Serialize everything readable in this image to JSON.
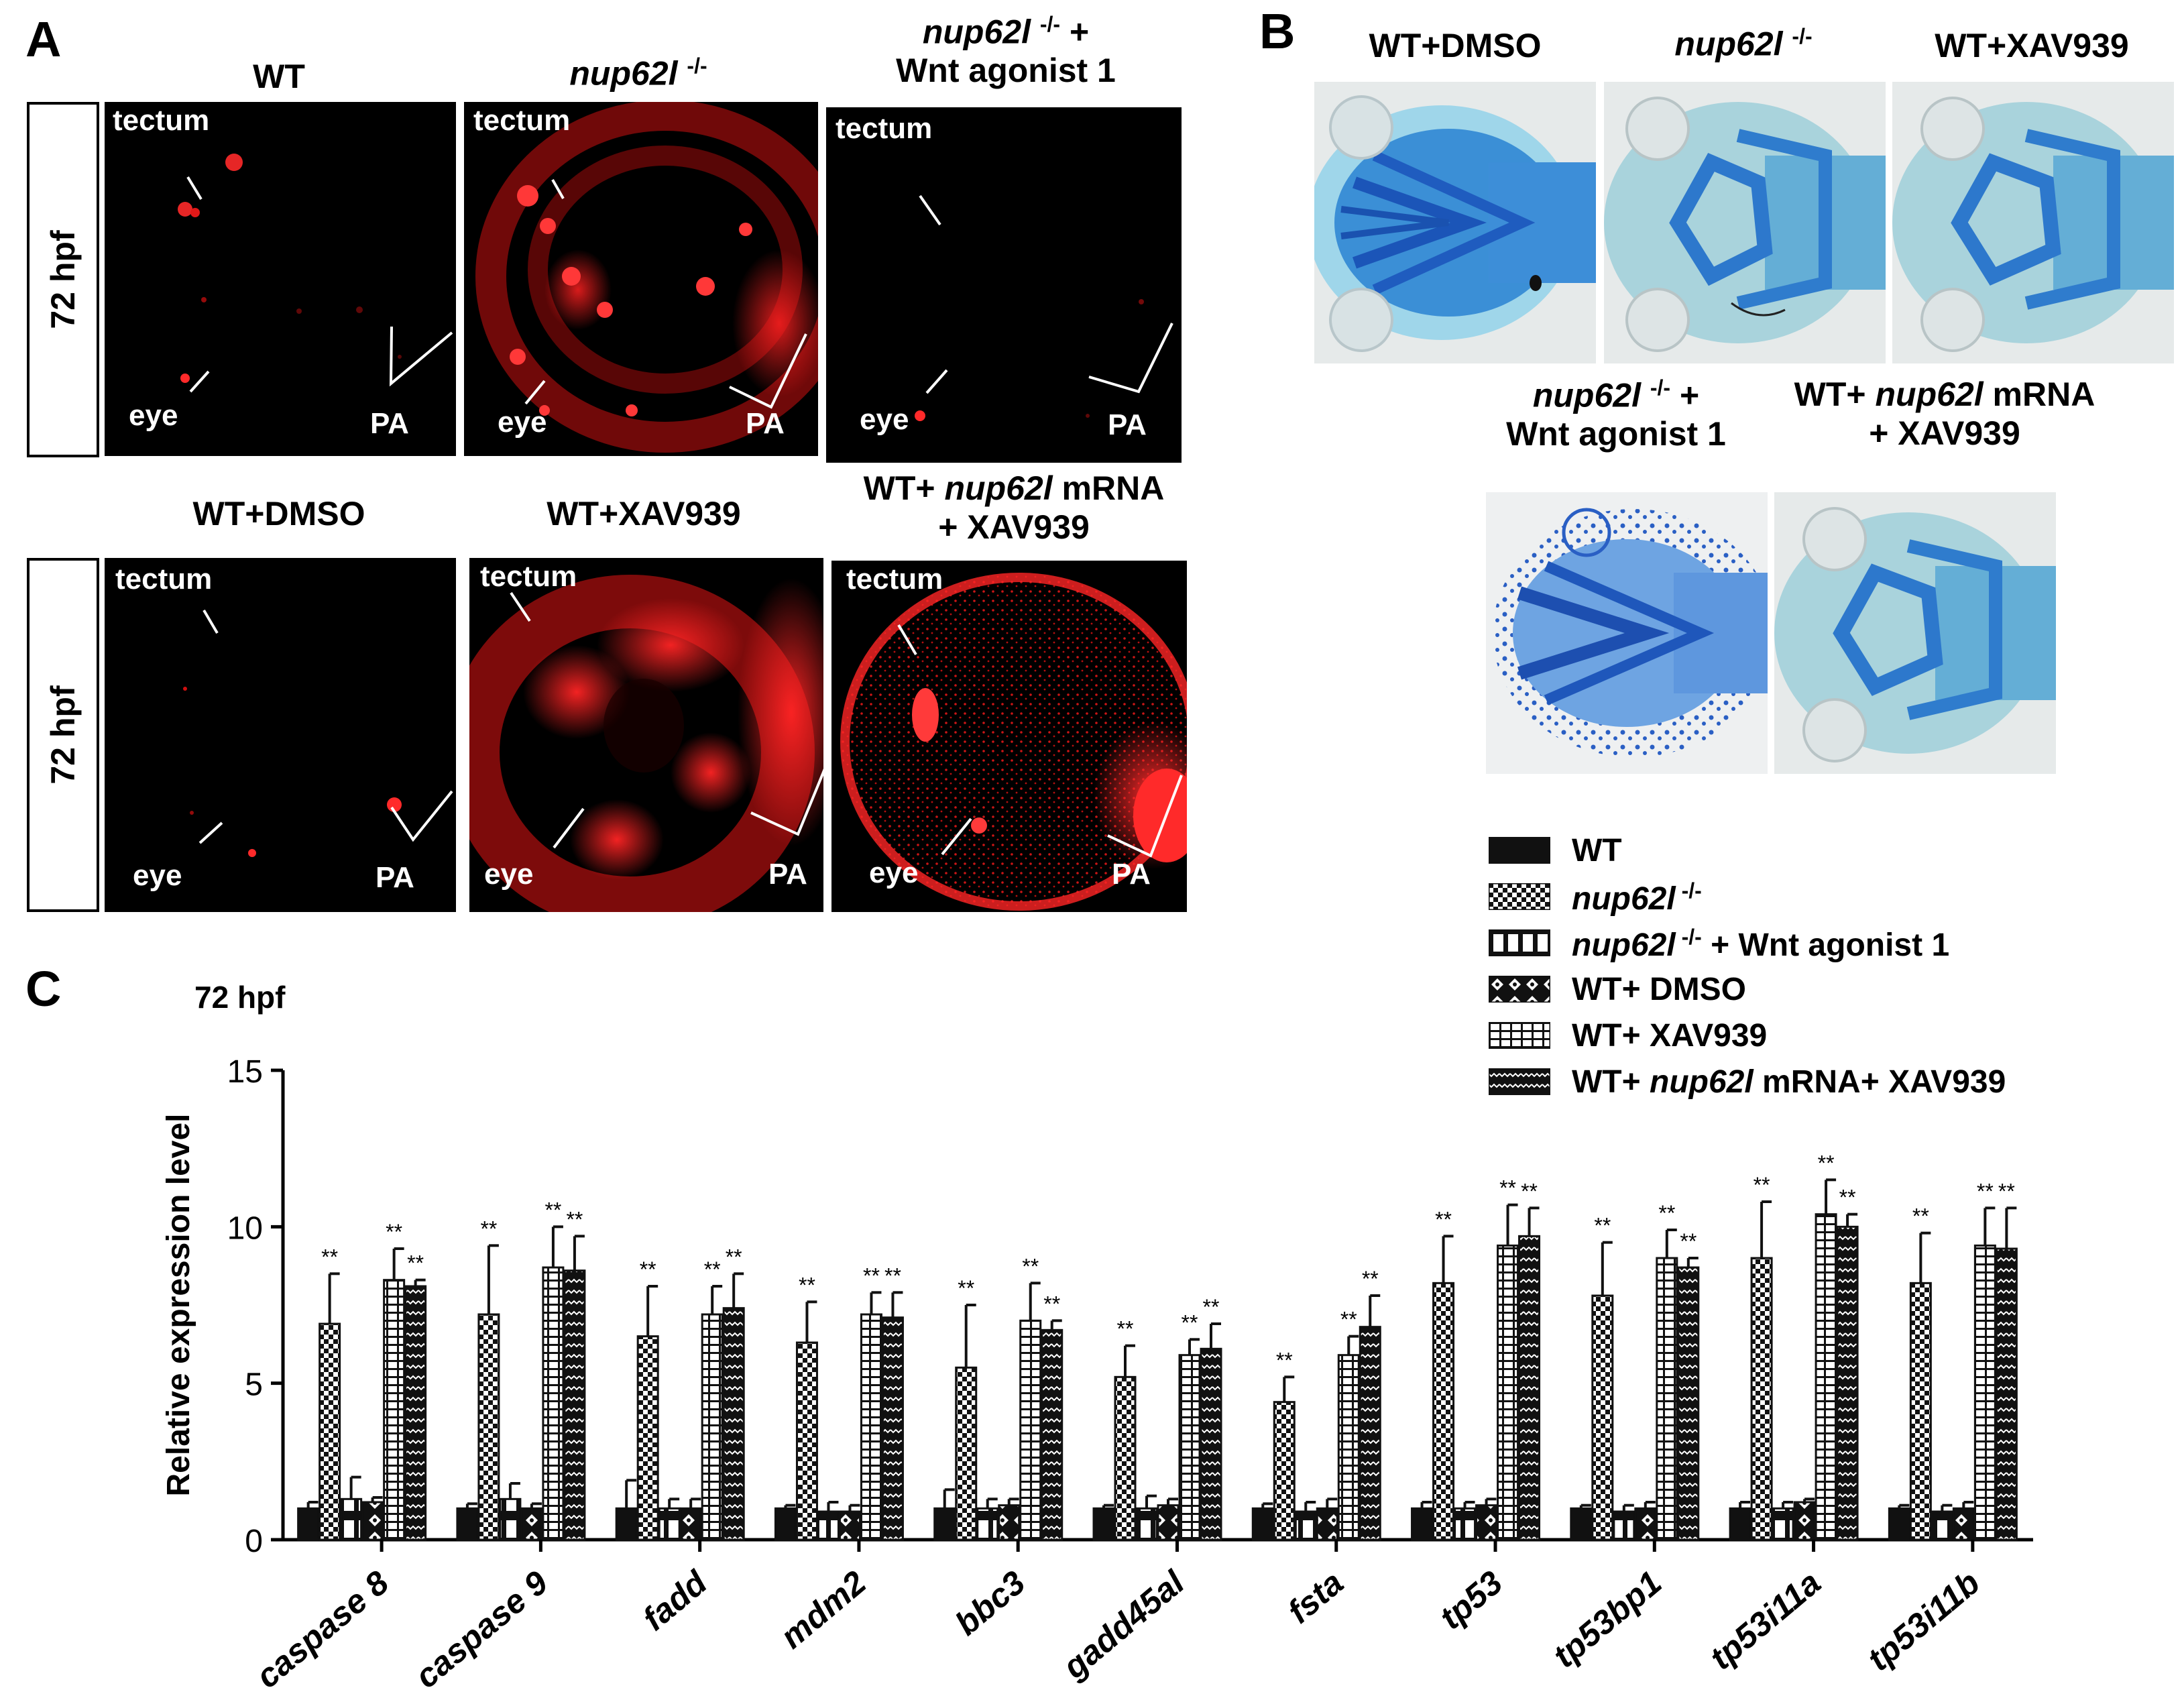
{
  "panels": {
    "A": {
      "label": "A",
      "row_label": "72 hpf",
      "images": [
        {
          "title": "WT",
          "title_italic": "",
          "tectum": "tectum",
          "eye": "eye",
          "pa": "PA"
        },
        {
          "title": "",
          "title_italic": "nup62l",
          "title_sup": "-/-",
          "tectum": "tectum",
          "eye": "eye",
          "pa": "PA"
        },
        {
          "title_italic": "nup62l",
          "title_sup": "-/-",
          "title_rest": " +",
          "title_line2": "Wnt agonist 1",
          "tectum": "tectum",
          "eye": "eye",
          "pa": "PA"
        },
        {
          "title": "WT+DMSO",
          "tectum": "tectum",
          "eye": "eye",
          "pa": "PA"
        },
        {
          "title": "WT+XAV939",
          "tectum": "tectum",
          "eye": "eye",
          "pa": "PA"
        },
        {
          "title_pre": "WT+ ",
          "title_italic": "nup62l",
          "title_rest": " mRNA",
          "title_line2": "+ XAV939",
          "tectum": "tectum",
          "eye": "eye",
          "pa": "PA"
        }
      ]
    },
    "B": {
      "label": "B",
      "titles": {
        "wt_dmso": "WT+DMSO",
        "mut_italic": "nup62l",
        "mut_sup": "-/-",
        "wt_xav": "WT+XAV939",
        "mut_wnt_italic": "nup62l",
        "mut_wnt_sup": "-/-",
        "mut_wnt_rest": " +",
        "mut_wnt_line2": "Wnt agonist 1",
        "rescue_pre": "WT+ ",
        "rescue_italic": "nup62l",
        "rescue_rest": " mRNA",
        "rescue_line2": "+ XAV939"
      }
    },
    "C": {
      "label": "C"
    }
  },
  "legend": [
    {
      "pre": "WT",
      "italic": "",
      "sup": "",
      "rest": "",
      "pattern": "solid"
    },
    {
      "pre": "",
      "italic": "nup62l",
      "sup": "-/-",
      "rest": "",
      "pattern": "checker"
    },
    {
      "pre": "",
      "italic": "nup62l",
      "sup": "-/-",
      "rest": "+ Wnt agonist 1",
      "pattern": "vbars"
    },
    {
      "pre": "WT+ DMSO",
      "italic": "",
      "sup": "",
      "rest": "",
      "pattern": "xdiamond"
    },
    {
      "pre": "WT+ XAV939",
      "italic": "",
      "sup": "",
      "rest": "",
      "pattern": "hgrid"
    },
    {
      "pre": "WT+ ",
      "italic": "nup62l",
      "sup": "",
      "rest": " mRNA+ XAV939",
      "pattern": "zigzag"
    }
  ],
  "chart_data": {
    "type": "bar",
    "title": "72 hpf",
    "ylabel": "Relative expression level",
    "xlabel": "",
    "ylim": [
      0,
      15
    ],
    "yticks": [
      "0",
      "5",
      "10",
      "15"
    ],
    "significance_mark": "**",
    "categories": [
      "caspase 8",
      "caspase 9",
      "fadd",
      "mdm2",
      "bbc3",
      "gadd45al",
      "fsta",
      "tp53",
      "tp53bp1",
      "tp53i11a",
      "tp53i11b"
    ],
    "series": [
      {
        "name": "WT",
        "values": [
          1.0,
          1.0,
          1.0,
          1.0,
          1.0,
          1.0,
          1.0,
          1.0,
          1.0,
          1.0,
          1.0
        ],
        "errors": [
          0.2,
          0.15,
          0.9,
          0.1,
          0.6,
          0.1,
          0.15,
          0.2,
          0.1,
          0.2,
          0.1
        ],
        "sig": [
          false,
          false,
          false,
          false,
          false,
          false,
          false,
          false,
          false,
          false,
          false
        ]
      },
      {
        "name": "nup62l -/-",
        "values": [
          6.9,
          7.2,
          6.5,
          6.3,
          5.5,
          5.2,
          4.4,
          8.2,
          7.8,
          9.0,
          8.2
        ],
        "errors": [
          1.6,
          2.2,
          1.6,
          1.3,
          2.0,
          1.0,
          0.8,
          1.5,
          1.7,
          1.8,
          1.6
        ],
        "sig": [
          true,
          true,
          true,
          true,
          true,
          true,
          true,
          true,
          true,
          true,
          true
        ]
      },
      {
        "name": "nup62l -/- + Wnt agonist 1",
        "values": [
          1.3,
          1.3,
          1.0,
          0.9,
          1.0,
          1.0,
          0.9,
          1.0,
          0.9,
          1.0,
          0.9
        ],
        "errors": [
          0.7,
          0.5,
          0.3,
          0.3,
          0.3,
          0.4,
          0.3,
          0.2,
          0.2,
          0.2,
          0.2
        ],
        "sig": [
          false,
          false,
          false,
          false,
          false,
          false,
          false,
          false,
          false,
          false,
          false
        ]
      },
      {
        "name": "WT+ DMSO",
        "values": [
          1.2,
          1.0,
          1.0,
          0.9,
          1.1,
          1.1,
          1.0,
          1.1,
          1.0,
          1.2,
          1.0
        ],
        "errors": [
          0.15,
          0.15,
          0.3,
          0.2,
          0.2,
          0.2,
          0.3,
          0.2,
          0.2,
          0.1,
          0.2
        ],
        "sig": [
          false,
          false,
          false,
          false,
          false,
          false,
          false,
          false,
          false,
          false,
          false
        ]
      },
      {
        "name": "WT+ XAV939",
        "values": [
          8.3,
          8.7,
          7.2,
          7.2,
          7.0,
          5.9,
          5.9,
          9.4,
          9.0,
          10.4,
          9.4
        ],
        "errors": [
          1.0,
          1.3,
          0.9,
          0.7,
          1.2,
          0.5,
          0.6,
          1.3,
          0.9,
          1.1,
          1.2
        ],
        "sig": [
          true,
          true,
          true,
          true,
          true,
          true,
          true,
          true,
          true,
          true,
          true
        ]
      },
      {
        "name": "WT+ nup62l mRNA+ XAV939",
        "values": [
          8.1,
          8.6,
          7.4,
          7.1,
          6.7,
          6.1,
          6.8,
          9.7,
          8.7,
          10.0,
          9.3
        ],
        "errors": [
          0.2,
          1.1,
          1.1,
          0.8,
          0.3,
          0.8,
          1.0,
          0.9,
          0.3,
          0.4,
          1.3
        ],
        "sig": [
          true,
          true,
          true,
          true,
          true,
          true,
          true,
          true,
          true,
          true,
          true
        ]
      }
    ]
  }
}
